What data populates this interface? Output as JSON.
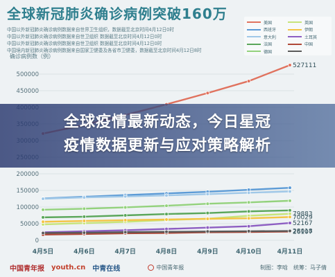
{
  "header": {
    "title": "全球新冠肺炎确诊病例突破160万",
    "notes": [
      "中国以外新冠肺炎确诊病例数据来自世界卫生组织，数据截至北京时间4月12日0时",
      "中国以外新冠肺炎确诊病例数据来自世卫组织 数据截至北京时间4月12日0时",
      "中国以外新冠肺炎确诊病例数据来自世卫组织 数据截至北京时间4月12日0时",
      "中国境内新冠肺炎确诊病例数据来自国家卫健委及各省市卫健委，数据截至北京时间4月12日8时"
    ],
    "unit": "确诊病例数（例）"
  },
  "overlay": {
    "line1": "全球疫情最新动态，今日星冠",
    "line2": "疫情数据更新与应对策略解析"
  },
  "legend": [
    {
      "label": "美国",
      "color": "#e0725e"
    },
    {
      "label": "英国",
      "color": "#c7e47a"
    },
    {
      "label": "西班牙",
      "color": "#5c9bd6"
    },
    {
      "label": "伊朗",
      "color": "#f4c445"
    },
    {
      "label": "意大利",
      "color": "#a0c8e8"
    },
    {
      "label": "土耳其",
      "color": "#8d5ec2"
    },
    {
      "label": "法国",
      "color": "#5aa65a"
    },
    {
      "label": "中国",
      "color": "#b04838"
    },
    {
      "label": "德国",
      "color": "#93d27c"
    },
    {
      "label": "",
      "color": "#5a5a5a"
    }
  ],
  "footer": {
    "logo1": "中国青年报",
    "logo2": "youth.cn",
    "logo3": "中青在线",
    "source": "中国青年报",
    "credits": "制图：李晗　统筹：马子倩"
  },
  "chart_data": {
    "type": "line",
    "x": [
      "4月5日",
      "4月6日",
      "4月7日",
      "4月8日",
      "4月9日",
      "4月10日",
      "4月11日"
    ],
    "ylim": [
      0,
      550000
    ],
    "yticks": [
      "0",
      "50000",
      "100000",
      "150000",
      "200000",
      "250000",
      "300000",
      "350000",
      "400000",
      "450000",
      "500000"
    ],
    "grid": true,
    "series": [
      {
        "name": "美国",
        "color": "#e0725e",
        "values": [
          321000,
          347000,
          377000,
          409000,
          443000,
          479000,
          527111
        ],
        "end_label": "527111"
      },
      {
        "name": "西班牙",
        "color": "#5c9bd6",
        "values": [
          126000,
          131000,
          136000,
          141000,
          146000,
          152000,
          158000
        ]
      },
      {
        "name": "意大利",
        "color": "#a0c8e8",
        "values": [
          125000,
          129000,
          132000,
          135000,
          139000,
          143000,
          147000
        ]
      },
      {
        "name": "德国",
        "color": "#93d27c",
        "values": [
          92000,
          95000,
          99000,
          104000,
          110000,
          114000,
          119000
        ]
      },
      {
        "name": "法国",
        "color": "#5aa65a",
        "values": [
          69000,
          71000,
          75000,
          79000,
          82000,
          87000,
          90000
        ]
      },
      {
        "name": "英国",
        "color": "#c7e47a",
        "values": [
          47806,
          51608,
          55242,
          60733,
          65077,
          73758,
          79883
        ],
        "end_label": "79883"
      },
      {
        "name": "伊朗",
        "color": "#f4c445",
        "values": [
          55743,
          58226,
          60500,
          62589,
          64586,
          66220,
          70029
        ],
        "end_label": "70029"
      },
      {
        "name": "土耳其",
        "color": "#8d5ec2",
        "values": [
          23934,
          27069,
          30217,
          34109,
          38226,
          42282,
          52167
        ],
        "end_label": "52167"
      },
      {
        "name": "中国",
        "color": "#b04838",
        "values": [
          17000,
          19000,
          21000,
          22000,
          24000,
          25000,
          26107
        ],
        "end_label": "26107"
      },
      {
        "name": "",
        "color": "#5a5a5a",
        "values": [
          22000,
          23000,
          24500,
          25500,
          26500,
          27300,
          28018
        ],
        "end_label": "28018"
      }
    ]
  }
}
